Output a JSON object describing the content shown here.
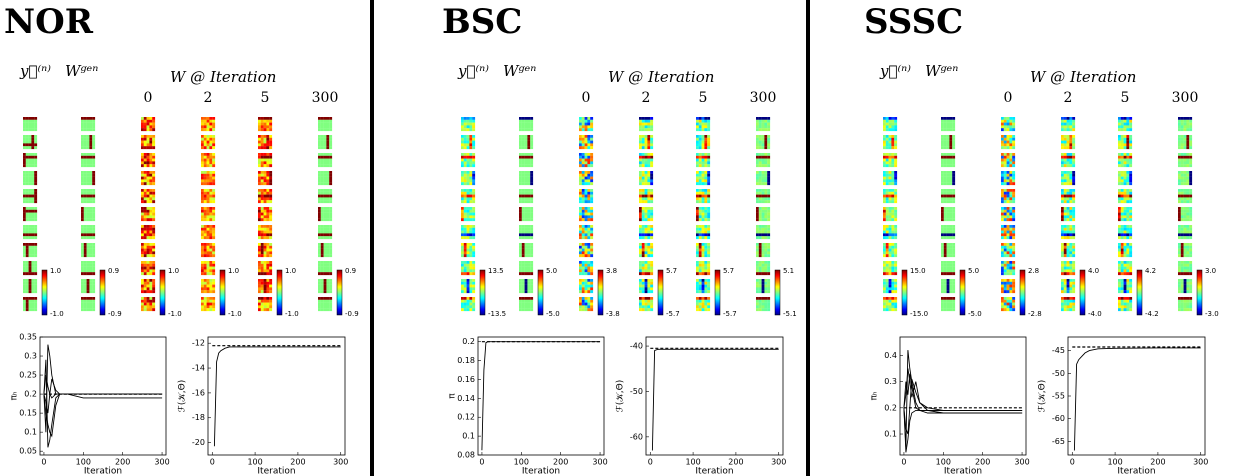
{
  "panels": [
    {
      "title": "NOR",
      "y_header": "y⃗⁽ⁿ⁾",
      "wgen_header": "Wᵍᵉⁿ",
      "iter_header": "W @ Iteration",
      "iterations": [
        "0",
        "2",
        "5",
        "300"
      ],
      "colorbars": [
        [
          "1.0",
          "-1.0"
        ],
        [
          "0.9",
          "-0.9"
        ],
        [
          "1.0",
          "-1.0"
        ],
        [
          "1.0",
          "-1.0"
        ],
        [
          "1.0",
          "-1.0"
        ],
        [
          "0.9",
          "-0.9"
        ]
      ]
    },
    {
      "title": "BSC",
      "y_header": "y⃗⁽ⁿ⁾",
      "wgen_header": "Wᵍᵉⁿ",
      "iter_header": "W @ Iteration",
      "iterations": [
        "0",
        "2",
        "5",
        "300"
      ],
      "colorbars": [
        [
          "13.5",
          "-13.5"
        ],
        [
          "5.0",
          "-5.0"
        ],
        [
          "3.8",
          "-3.8"
        ],
        [
          "5.7",
          "-5.7"
        ],
        [
          "5.7",
          "-5.7"
        ],
        [
          "5.1",
          "-5.1"
        ]
      ]
    },
    {
      "title": "SSSC",
      "y_header": "y⃗⁽ⁿ⁾",
      "wgen_header": "Wᵍᵉⁿ",
      "iter_header": "W @ Iteration",
      "iterations": [
        "0",
        "2",
        "5",
        "300"
      ],
      "colorbars": [
        [
          "15.0",
          "-15.0"
        ],
        [
          "5.0",
          "-5.0"
        ],
        [
          "2.8",
          "-2.8"
        ],
        [
          "4.0",
          "-4.0"
        ],
        [
          "4.2",
          "-4.2"
        ],
        [
          "3.0",
          "-3.0"
        ]
      ]
    }
  ],
  "chart_data": [
    {
      "type": "line",
      "xlabel": "Iteration",
      "ylabel": "πₕ",
      "x": [
        0,
        5,
        10,
        15,
        20,
        30,
        40,
        60,
        100,
        200,
        300
      ],
      "xlim": [
        -10,
        310
      ],
      "xticks": [
        0,
        100,
        200,
        300
      ],
      "ylim": [
        0.04,
        0.35
      ],
      "yticks": [
        0.05,
        0.1,
        0.15,
        0.2,
        0.25,
        0.3,
        0.35
      ],
      "series": [
        {
          "color": "#000000",
          "values": [
            0.2,
            0.1,
            0.33,
            0.3,
            0.25,
            0.2,
            0.2,
            0.2,
            0.2,
            0.2,
            0.2
          ]
        },
        {
          "color": "#000000",
          "values": [
            0.2,
            0.29,
            0.06,
            0.08,
            0.12,
            0.19,
            0.2,
            0.2,
            0.2,
            0.2,
            0.2
          ]
        },
        {
          "color": "#000000",
          "values": [
            0.2,
            0.15,
            0.12,
            0.1,
            0.09,
            0.17,
            0.2,
            0.2,
            0.2,
            0.2,
            0.2
          ]
        },
        {
          "color": "#000000",
          "values": [
            0.2,
            0.25,
            0.22,
            0.2,
            0.19,
            0.2,
            0.2,
            0.2,
            0.19,
            0.19,
            0.19
          ]
        },
        {
          "color": "#000000",
          "values": [
            0.2,
            0.18,
            0.15,
            0.2,
            0.24,
            0.21,
            0.2,
            0.2,
            0.2,
            0.2,
            0.2
          ]
        },
        {
          "color": "#000000",
          "dashed": true,
          "values": [
            0.2,
            0.2,
            0.2,
            0.2,
            0.2,
            0.2,
            0.2,
            0.2,
            0.2,
            0.2,
            0.2
          ]
        }
      ]
    },
    {
      "type": "line",
      "xlabel": "Iteration",
      "ylabel": "ℱ(𝒦,Θ)",
      "x": [
        0,
        5,
        10,
        15,
        20,
        30,
        40,
        60,
        100,
        200,
        300
      ],
      "xlim": [
        -10,
        310
      ],
      "xticks": [
        0,
        100,
        200,
        300
      ],
      "ylim": [
        -21,
        -11.5
      ],
      "yticks": [
        -20,
        -18,
        -16,
        -14,
        -12
      ],
      "series": [
        {
          "color": "#000000",
          "values": [
            null,
            -20.3,
            -13.5,
            -12.8,
            -12.6,
            -12.4,
            -12.3,
            -12.3,
            -12.3,
            -12.3,
            -12.3
          ]
        },
        {
          "color": "#000000",
          "dashed": true,
          "values": [
            -12.2,
            -12.2,
            -12.2,
            -12.2,
            -12.2,
            -12.2,
            -12.2,
            -12.2,
            -12.2,
            -12.2,
            -12.2
          ]
        }
      ]
    },
    {
      "type": "line",
      "xlabel": "Iteration",
      "ylabel": "π",
      "x": [
        0,
        5,
        10,
        15,
        20,
        30,
        40,
        60,
        100,
        200,
        300
      ],
      "xlim": [
        -10,
        310
      ],
      "xticks": [
        0,
        100,
        200,
        300
      ],
      "ylim": [
        0.08,
        0.205
      ],
      "yticks": [
        0.08,
        0.1,
        0.12,
        0.14,
        0.16,
        0.18,
        0.2
      ],
      "series": [
        {
          "color": "#000000",
          "values": [
            0.085,
            0.17,
            0.199,
            0.2,
            0.2,
            0.2,
            0.2,
            0.2,
            0.2,
            0.2,
            0.2
          ]
        },
        {
          "color": "#000000",
          "dashed": true,
          "values": [
            0.2,
            0.2,
            0.2,
            0.2,
            0.2,
            0.2,
            0.2,
            0.2,
            0.2,
            0.2,
            0.2
          ]
        }
      ]
    },
    {
      "type": "line",
      "xlabel": "Iteration",
      "ylabel": "ℱ(𝒦,Θ)",
      "x": [
        0,
        5,
        10,
        15,
        20,
        30,
        40,
        60,
        100,
        200,
        300
      ],
      "xlim": [
        -10,
        310
      ],
      "xticks": [
        0,
        100,
        200,
        300
      ],
      "ylim": [
        -64,
        -38
      ],
      "yticks": [
        -60,
        -50,
        -40
      ],
      "series": [
        {
          "color": "#000000",
          "values": [
            null,
            -63,
            -41,
            -40.8,
            -40.7,
            -40.7,
            -40.7,
            -40.7,
            -40.7,
            -40.7,
            -40.7
          ]
        },
        {
          "color": "#000000",
          "dashed": true,
          "values": [
            -40.5,
            -40.5,
            -40.5,
            -40.5,
            -40.5,
            -40.5,
            -40.5,
            -40.5,
            -40.5,
            -40.5,
            -40.5
          ]
        }
      ]
    },
    {
      "type": "line",
      "xlabel": "Iteration",
      "ylabel": "πₕ",
      "x": [
        0,
        5,
        10,
        15,
        20,
        30,
        40,
        60,
        100,
        200,
        300
      ],
      "xlim": [
        -10,
        310
      ],
      "xticks": [
        0,
        100,
        200,
        300
      ],
      "ylim": [
        0.02,
        0.47
      ],
      "yticks": [
        0.1,
        0.2,
        0.3,
        0.4
      ],
      "series": [
        {
          "color": "#000000",
          "values": [
            0.2,
            0.05,
            0.42,
            0.35,
            0.3,
            0.22,
            0.19,
            0.18,
            0.18,
            0.18,
            0.18
          ]
        },
        {
          "color": "#000000",
          "values": [
            0.2,
            0.3,
            0.25,
            0.33,
            0.28,
            0.2,
            0.19,
            0.19,
            0.19,
            0.19,
            0.19
          ]
        },
        {
          "color": "#000000",
          "values": [
            0.2,
            0.12,
            0.1,
            0.2,
            0.31,
            0.26,
            0.22,
            0.19,
            0.18,
            0.18,
            0.18
          ]
        },
        {
          "color": "#000000",
          "values": [
            0.2,
            0.03,
            0.08,
            0.15,
            0.18,
            0.19,
            0.19,
            0.19,
            0.19,
            0.19,
            0.19
          ]
        },
        {
          "color": "#000000",
          "values": [
            0.2,
            0.25,
            0.35,
            0.3,
            0.24,
            0.3,
            0.22,
            0.2,
            0.19,
            0.19,
            0.19
          ]
        },
        {
          "color": "#000000",
          "dashed": true,
          "values": [
            0.2,
            0.2,
            0.2,
            0.2,
            0.2,
            0.2,
            0.2,
            0.2,
            0.2,
            0.2,
            0.2
          ]
        }
      ]
    },
    {
      "type": "line",
      "xlabel": "Iteration",
      "ylabel": "ℱ(𝒦,Θ)",
      "x": [
        0,
        5,
        10,
        15,
        20,
        30,
        40,
        60,
        100,
        200,
        300
      ],
      "xlim": [
        -10,
        310
      ],
      "xticks": [
        0,
        100,
        200,
        300
      ],
      "ylim": [
        -68,
        -42
      ],
      "yticks": [
        -65,
        -60,
        -55,
        -50,
        -45
      ],
      "series": [
        {
          "color": "#000000",
          "values": [
            null,
            -67,
            -48,
            -47,
            -46.5,
            -45.5,
            -45,
            -44.6,
            -44.5,
            -44.4,
            -44.4
          ]
        },
        {
          "color": "#000000",
          "dashed": true,
          "values": [
            -44.2,
            -44.2,
            -44.2,
            -44.2,
            -44.2,
            -44.2,
            -44.2,
            -44.2,
            -44.2,
            -44.2,
            -44.2
          ]
        }
      ]
    }
  ]
}
